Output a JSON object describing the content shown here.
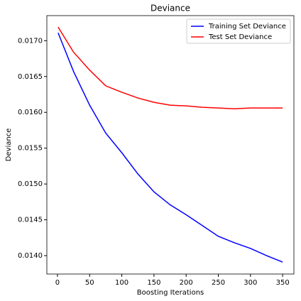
{
  "chart_data": {
    "type": "line",
    "title": "Deviance",
    "x_label": "Boosting Iterations",
    "y_label": "Deviance",
    "x": [
      1,
      25,
      50,
      75,
      100,
      125,
      150,
      175,
      200,
      225,
      250,
      275,
      300,
      325,
      350
    ],
    "series": [
      {
        "name": "Training Set Deviance",
        "color": "#0000ff",
        "values": [
          0.01711,
          0.01657,
          0.0161,
          0.01571,
          0.015436,
          0.01514,
          0.01489,
          0.01471,
          0.01457,
          0.01442,
          0.01427,
          0.01418,
          0.0141,
          0.014,
          0.01391
        ]
      },
      {
        "name": "Test Set Deviance",
        "color": "#ff0000",
        "values": [
          0.01719,
          0.01684,
          0.01659,
          0.01637,
          0.01628,
          0.0162,
          0.01614,
          0.0161,
          0.01609,
          0.01607,
          0.01606,
          0.01605,
          0.01606,
          0.01606,
          0.01606
        ]
      }
    ],
    "xlim": [
      -16.5,
      367.5
    ],
    "ylim": [
      0.013743,
      0.01735
    ],
    "xticks": [
      0,
      50,
      100,
      150,
      200,
      250,
      300,
      350
    ],
    "yticks": [
      {
        "value": 0.014,
        "label": "0.0140"
      },
      {
        "value": 0.0145,
        "label": "0.0145"
      },
      {
        "value": 0.015,
        "label": "0.0150"
      },
      {
        "value": 0.0155,
        "label": "0.0155"
      },
      {
        "value": 0.016,
        "label": "0.0160"
      },
      {
        "value": 0.0165,
        "label": "0.0165"
      },
      {
        "value": 0.017,
        "label": "0.0170"
      }
    ],
    "legend": "upper right",
    "grid": false
  }
}
